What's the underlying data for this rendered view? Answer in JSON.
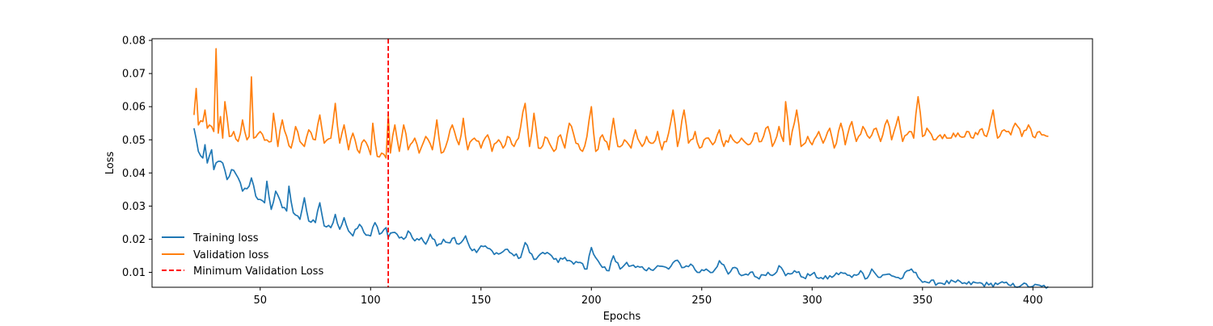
{
  "chart_data": {
    "type": "line",
    "title": "",
    "xlabel": "Epochs",
    "ylabel": "Loss",
    "xlim": [
      1,
      427
    ],
    "ylim": [
      0.0055,
      0.0805
    ],
    "xticks": [
      50,
      100,
      150,
      200,
      250,
      300,
      350,
      400
    ],
    "yticks": [
      0.01,
      0.02,
      0.03,
      0.04,
      0.05,
      0.06,
      0.07,
      0.08
    ],
    "xtick_labels": [
      "50",
      "100",
      "150",
      "200",
      "250",
      "300",
      "350",
      "400"
    ],
    "ytick_labels": [
      "0.01",
      "0.02",
      "0.03",
      "0.04",
      "0.05",
      "0.06",
      "0.07",
      "0.08"
    ],
    "grid": false,
    "legend_position": "lower-left",
    "x_start": 20,
    "x_end": 407,
    "series": [
      {
        "name": "Training loss",
        "color": "#1f77b4",
        "style": "solid",
        "anchors": [
          [
            20,
            0.0535
          ],
          [
            22,
            0.0465
          ],
          [
            24,
            0.0445
          ],
          [
            25,
            0.0485
          ],
          [
            26,
            0.043
          ],
          [
            28,
            0.047
          ],
          [
            29,
            0.041
          ],
          [
            31,
            0.0435
          ],
          [
            33,
            0.043
          ],
          [
            35,
            0.038
          ],
          [
            37,
            0.041
          ],
          [
            40,
            0.0385
          ],
          [
            42,
            0.0345
          ],
          [
            45,
            0.036
          ],
          [
            46,
            0.0385
          ],
          [
            48,
            0.033
          ],
          [
            50,
            0.032
          ],
          [
            52,
            0.031
          ],
          [
            53,
            0.0375
          ],
          [
            55,
            0.029
          ],
          [
            57,
            0.0345
          ],
          [
            60,
            0.0295
          ],
          [
            62,
            0.0285
          ],
          [
            63,
            0.036
          ],
          [
            65,
            0.028
          ],
          [
            68,
            0.026
          ],
          [
            70,
            0.0325
          ],
          [
            72,
            0.0255
          ],
          [
            75,
            0.025
          ],
          [
            77,
            0.031
          ],
          [
            79,
            0.024
          ],
          [
            82,
            0.0235
          ],
          [
            84,
            0.0275
          ],
          [
            86,
            0.023
          ],
          [
            88,
            0.0265
          ],
          [
            90,
            0.0225
          ],
          [
            92,
            0.021
          ],
          [
            95,
            0.0245
          ],
          [
            97,
            0.022
          ],
          [
            100,
            0.021
          ],
          [
            102,
            0.025
          ],
          [
            104,
            0.0215
          ],
          [
            107,
            0.0235
          ],
          [
            108,
            0.0205
          ],
          [
            110,
            0.022
          ],
          [
            112,
            0.0215
          ],
          [
            115,
            0.02
          ],
          [
            117,
            0.0225
          ],
          [
            120,
            0.0195
          ],
          [
            123,
            0.0205
          ],
          [
            125,
            0.0185
          ],
          [
            127,
            0.0215
          ],
          [
            130,
            0.018
          ],
          [
            133,
            0.02
          ],
          [
            135,
            0.019
          ],
          [
            138,
            0.0205
          ],
          [
            140,
            0.0185
          ],
          [
            143,
            0.021
          ],
          [
            145,
            0.0175
          ],
          [
            148,
            0.016
          ],
          [
            150,
            0.018
          ],
          [
            155,
            0.0165
          ],
          [
            158,
            0.0155
          ],
          [
            162,
            0.017
          ],
          [
            165,
            0.015
          ],
          [
            168,
            0.0145
          ],
          [
            170,
            0.019
          ],
          [
            172,
            0.016
          ],
          [
            175,
            0.014
          ],
          [
            178,
            0.016
          ],
          [
            182,
            0.015
          ],
          [
            185,
            0.013
          ],
          [
            188,
            0.0145
          ],
          [
            192,
            0.0125
          ],
          [
            195,
            0.013
          ],
          [
            198,
            0.011
          ],
          [
            200,
            0.0175
          ],
          [
            203,
            0.0135
          ],
          [
            205,
            0.0115
          ],
          [
            208,
            0.0105
          ],
          [
            210,
            0.015
          ],
          [
            213,
            0.011
          ],
          [
            216,
            0.013
          ],
          [
            220,
            0.0115
          ],
          [
            225,
            0.0105
          ],
          [
            230,
            0.012
          ],
          [
            235,
            0.011
          ],
          [
            238,
            0.0135
          ],
          [
            242,
            0.0115
          ],
          [
            245,
            0.0125
          ],
          [
            248,
            0.01
          ],
          [
            252,
            0.011
          ],
          [
            255,
            0.01
          ],
          [
            258,
            0.0135
          ],
          [
            262,
            0.0095
          ],
          [
            265,
            0.0115
          ],
          [
            268,
            0.009
          ],
          [
            272,
            0.01
          ],
          [
            275,
            0.0085
          ],
          [
            280,
            0.01
          ],
          [
            283,
            0.0095
          ],
          [
            285,
            0.012
          ],
          [
            288,
            0.009
          ],
          [
            292,
            0.0105
          ],
          [
            296,
            0.0085
          ],
          [
            300,
            0.0095
          ],
          [
            305,
            0.008
          ],
          [
            310,
            0.009
          ],
          [
            313,
            0.01
          ],
          [
            318,
            0.0085
          ],
          [
            322,
            0.0105
          ],
          [
            324,
            0.008
          ],
          [
            327,
            0.011
          ],
          [
            330,
            0.0085
          ],
          [
            335,
            0.0095
          ],
          [
            340,
            0.008
          ],
          [
            345,
            0.011
          ],
          [
            348,
            0.0085
          ],
          [
            352,
            0.007
          ],
          [
            358,
            0.0068
          ],
          [
            365,
            0.007
          ],
          [
            370,
            0.0065
          ],
          [
            375,
            0.0068
          ],
          [
            380,
            0.0062
          ],
          [
            385,
            0.0068
          ],
          [
            390,
            0.006
          ],
          [
            395,
            0.0062
          ],
          [
            400,
            0.0058
          ],
          [
            404,
            0.0058
          ],
          [
            407,
            0.0057
          ]
        ]
      },
      {
        "name": "Validation loss",
        "color": "#ff7f0e",
        "style": "solid",
        "anchors": [
          [
            20,
            0.0575
          ],
          [
            21,
            0.0655
          ],
          [
            22,
            0.0545
          ],
          [
            24,
            0.0555
          ],
          [
            25,
            0.059
          ],
          [
            26,
            0.0535
          ],
          [
            28,
            0.054
          ],
          [
            29,
            0.0525
          ],
          [
            30,
            0.0775
          ],
          [
            31,
            0.052
          ],
          [
            32,
            0.057
          ],
          [
            33,
            0.0505
          ],
          [
            34,
            0.0615
          ],
          [
            36,
            0.051
          ],
          [
            38,
            0.0525
          ],
          [
            40,
            0.0495
          ],
          [
            42,
            0.056
          ],
          [
            44,
            0.05
          ],
          [
            45,
            0.051
          ],
          [
            46,
            0.069
          ],
          [
            47,
            0.0505
          ],
          [
            50,
            0.0525
          ],
          [
            53,
            0.05
          ],
          [
            55,
            0.0495
          ],
          [
            56,
            0.058
          ],
          [
            58,
            0.048
          ],
          [
            60,
            0.056
          ],
          [
            62,
            0.051
          ],
          [
            64,
            0.0475
          ],
          [
            66,
            0.054
          ],
          [
            68,
            0.0495
          ],
          [
            70,
            0.048
          ],
          [
            72,
            0.053
          ],
          [
            75,
            0.05
          ],
          [
            77,
            0.0575
          ],
          [
            79,
            0.049
          ],
          [
            82,
            0.0505
          ],
          [
            84,
            0.061
          ],
          [
            86,
            0.049
          ],
          [
            88,
            0.0545
          ],
          [
            90,
            0.047
          ],
          [
            92,
            0.052
          ],
          [
            95,
            0.046
          ],
          [
            97,
            0.05
          ],
          [
            100,
            0.0455
          ],
          [
            101,
            0.055
          ],
          [
            103,
            0.045
          ],
          [
            105,
            0.046
          ],
          [
            107,
            0.0445
          ],
          [
            108,
            0.0575
          ],
          [
            109,
            0.046
          ],
          [
            111,
            0.0545
          ],
          [
            113,
            0.0465
          ],
          [
            115,
            0.0545
          ],
          [
            117,
            0.047
          ],
          [
            120,
            0.0505
          ],
          [
            122,
            0.046
          ],
          [
            125,
            0.051
          ],
          [
            128,
            0.047
          ],
          [
            130,
            0.056
          ],
          [
            132,
            0.046
          ],
          [
            135,
            0.05
          ],
          [
            137,
            0.0545
          ],
          [
            140,
            0.0485
          ],
          [
            142,
            0.0565
          ],
          [
            144,
            0.047
          ],
          [
            147,
            0.0505
          ],
          [
            150,
            0.0475
          ],
          [
            153,
            0.0515
          ],
          [
            155,
            0.0465
          ],
          [
            158,
            0.05
          ],
          [
            160,
            0.0475
          ],
          [
            162,
            0.051
          ],
          [
            165,
            0.048
          ],
          [
            167,
            0.0505
          ],
          [
            170,
            0.061
          ],
          [
            172,
            0.048
          ],
          [
            174,
            0.058
          ],
          [
            176,
            0.0475
          ],
          [
            180,
            0.0505
          ],
          [
            183,
            0.0465
          ],
          [
            186,
            0.0515
          ],
          [
            188,
            0.0475
          ],
          [
            190,
            0.055
          ],
          [
            193,
            0.049
          ],
          [
            196,
            0.0465
          ],
          [
            198,
            0.051
          ],
          [
            200,
            0.06
          ],
          [
            202,
            0.0465
          ],
          [
            205,
            0.0515
          ],
          [
            208,
            0.047
          ],
          [
            210,
            0.0565
          ],
          [
            212,
            0.048
          ],
          [
            215,
            0.05
          ],
          [
            218,
            0.0475
          ],
          [
            220,
            0.053
          ],
          [
            223,
            0.048
          ],
          [
            225,
            0.051
          ],
          [
            228,
            0.049
          ],
          [
            230,
            0.0525
          ],
          [
            232,
            0.047
          ],
          [
            235,
            0.052
          ],
          [
            237,
            0.059
          ],
          [
            239,
            0.048
          ],
          [
            242,
            0.059
          ],
          [
            244,
            0.049
          ],
          [
            247,
            0.0525
          ],
          [
            249,
            0.0475
          ],
          [
            252,
            0.0505
          ],
          [
            255,
            0.0485
          ],
          [
            258,
            0.053
          ],
          [
            260,
            0.048
          ],
          [
            263,
            0.0515
          ],
          [
            266,
            0.049
          ],
          [
            268,
            0.0505
          ],
          [
            271,
            0.0485
          ],
          [
            274,
            0.052
          ],
          [
            277,
            0.0495
          ],
          [
            280,
            0.054
          ],
          [
            282,
            0.048
          ],
          [
            285,
            0.054
          ],
          [
            287,
            0.0495
          ],
          [
            288,
            0.0615
          ],
          [
            290,
            0.0485
          ],
          [
            293,
            0.059
          ],
          [
            295,
            0.048
          ],
          [
            298,
            0.051
          ],
          [
            300,
            0.0485
          ],
          [
            303,
            0.0525
          ],
          [
            305,
            0.049
          ],
          [
            308,
            0.0535
          ],
          [
            310,
            0.0475
          ],
          [
            313,
            0.055
          ],
          [
            315,
            0.0485
          ],
          [
            318,
            0.0555
          ],
          [
            320,
            0.0495
          ],
          [
            323,
            0.054
          ],
          [
            326,
            0.0505
          ],
          [
            329,
            0.0535
          ],
          [
            331,
            0.0495
          ],
          [
            334,
            0.056
          ],
          [
            336,
            0.05
          ],
          [
            339,
            0.057
          ],
          [
            341,
            0.0495
          ],
          [
            344,
            0.0525
          ],
          [
            346,
            0.0505
          ],
          [
            348,
            0.063
          ],
          [
            350,
            0.051
          ],
          [
            352,
            0.0535
          ],
          [
            355,
            0.05
          ],
          [
            358,
            0.0515
          ],
          [
            361,
            0.0505
          ],
          [
            364,
            0.052
          ],
          [
            367,
            0.051
          ],
          [
            370,
            0.0525
          ],
          [
            373,
            0.0505
          ],
          [
            376,
            0.053
          ],
          [
            379,
            0.051
          ],
          [
            382,
            0.059
          ],
          [
            384,
            0.0505
          ],
          [
            387,
            0.053
          ],
          [
            390,
            0.0515
          ],
          [
            392,
            0.055
          ],
          [
            395,
            0.051
          ],
          [
            398,
            0.0545
          ],
          [
            400,
            0.051
          ],
          [
            403,
            0.0525
          ],
          [
            405,
            0.0515
          ],
          [
            407,
            0.051
          ]
        ]
      }
    ],
    "vline": {
      "name": "Minimum Validation Loss",
      "x": 108,
      "color": "#ff0000",
      "style": "dashed"
    }
  }
}
